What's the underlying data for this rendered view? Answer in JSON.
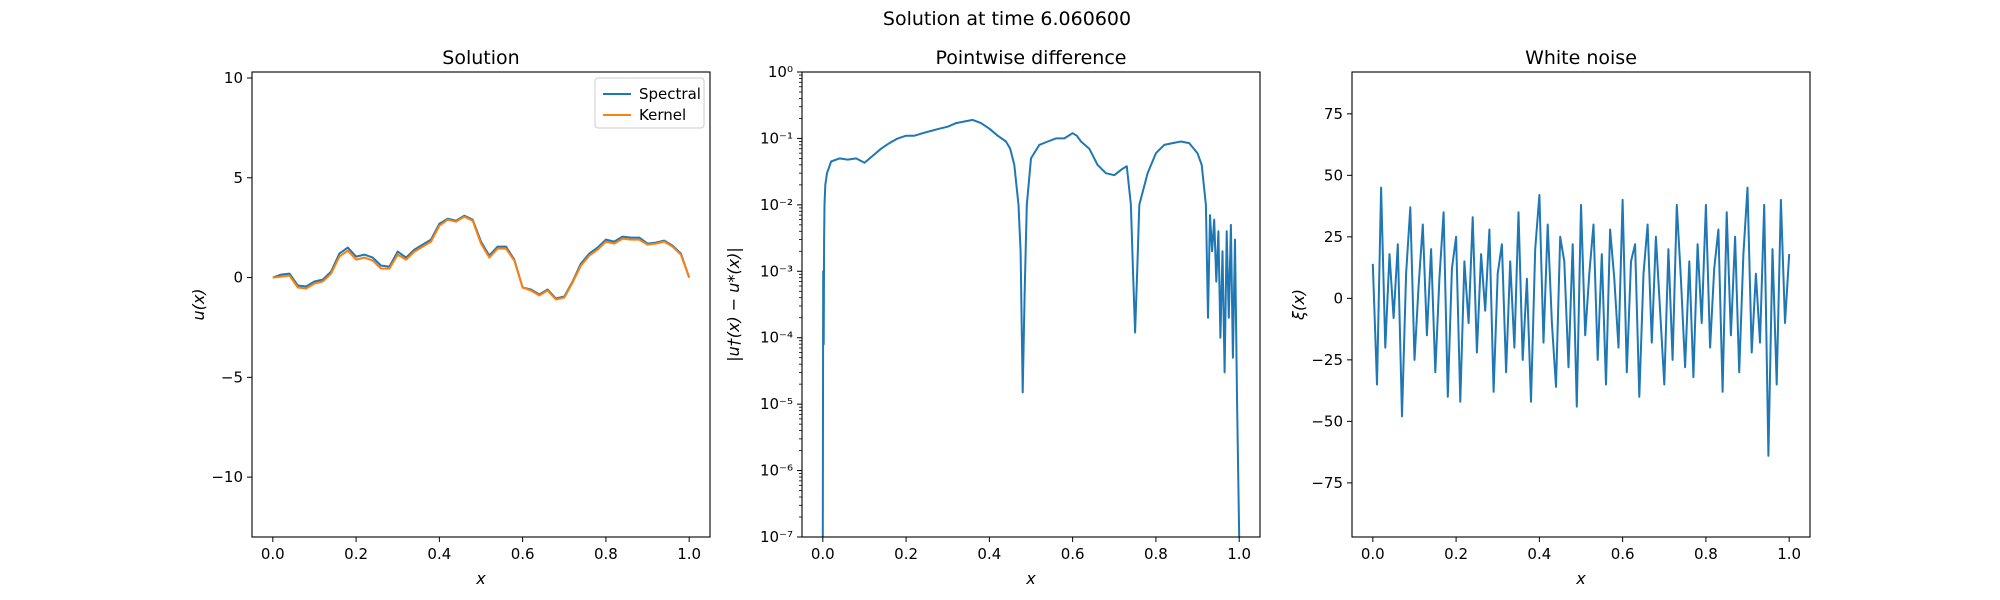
{
  "suptitle": "Solution at time 6.060600",
  "colors": {
    "spectral": "#1f77b4",
    "kernel": "#ff7f0e",
    "noise": "#1f77b4",
    "diff": "#1f77b4"
  },
  "chart_data": [
    {
      "type": "line",
      "title": "Solution",
      "xlabel": "x",
      "ylabel": "u(x)",
      "xlim": [
        -0.05,
        1.05
      ],
      "ylim": [
        -13.0,
        10.3
      ],
      "xticks": [
        "0.0",
        "0.2",
        "0.4",
        "0.6",
        "0.8",
        "1.0"
      ],
      "yticks": [
        "−10",
        "−5",
        "0",
        "5",
        "10"
      ],
      "legend": {
        "position": "top-right",
        "entries": [
          "Spectral",
          "Kernel"
        ]
      },
      "series": [
        {
          "name": "Spectral",
          "x": [
            0.0,
            0.02,
            0.04,
            0.06,
            0.08,
            0.1,
            0.12,
            0.14,
            0.16,
            0.18,
            0.2,
            0.22,
            0.24,
            0.26,
            0.28,
            0.3,
            0.32,
            0.34,
            0.36,
            0.38,
            0.4,
            0.42,
            0.44,
            0.46,
            0.48,
            0.5,
            0.52,
            0.54,
            0.56,
            0.58,
            0.6,
            0.62,
            0.64,
            0.66,
            0.68,
            0.7,
            0.72,
            0.74,
            0.76,
            0.78,
            0.8,
            0.82,
            0.84,
            0.86,
            0.88,
            0.9,
            0.92,
            0.94,
            0.96,
            0.98,
            1.0
          ],
          "y": [
            0.0,
            0.15,
            0.2,
            -0.4,
            -0.45,
            -0.2,
            -0.1,
            0.3,
            1.2,
            1.5,
            1.05,
            1.15,
            1.0,
            0.6,
            0.55,
            1.3,
            1.0,
            1.4,
            1.65,
            1.9,
            2.7,
            2.95,
            2.85,
            3.1,
            2.9,
            1.8,
            1.1,
            1.55,
            1.55,
            0.9,
            -0.5,
            -0.6,
            -0.85,
            -0.6,
            -1.05,
            -0.95,
            -0.2,
            0.7,
            1.2,
            1.5,
            1.9,
            1.8,
            2.05,
            2.0,
            2.0,
            1.7,
            1.75,
            1.85,
            1.6,
            1.2,
            0.0
          ]
        },
        {
          "name": "Kernel",
          "x": [
            0.0,
            0.02,
            0.04,
            0.06,
            0.08,
            0.1,
            0.12,
            0.14,
            0.16,
            0.18,
            0.2,
            0.22,
            0.24,
            0.26,
            0.28,
            0.3,
            0.32,
            0.34,
            0.36,
            0.38,
            0.4,
            0.42,
            0.44,
            0.46,
            0.48,
            0.5,
            0.52,
            0.54,
            0.56,
            0.58,
            0.6,
            0.62,
            0.64,
            0.66,
            0.68,
            0.7,
            0.72,
            0.74,
            0.76,
            0.78,
            0.8,
            0.82,
            0.84,
            0.86,
            0.88,
            0.9,
            0.92,
            0.94,
            0.96,
            0.98,
            1.0
          ],
          "y": [
            0.0,
            0.05,
            0.1,
            -0.5,
            -0.55,
            -0.3,
            -0.2,
            0.2,
            1.05,
            1.35,
            0.9,
            1.0,
            0.85,
            0.45,
            0.45,
            1.15,
            0.9,
            1.3,
            1.55,
            1.8,
            2.6,
            2.9,
            2.8,
            3.05,
            2.85,
            1.7,
            1.0,
            1.45,
            1.45,
            0.85,
            -0.5,
            -0.65,
            -0.9,
            -0.65,
            -1.1,
            -1.0,
            -0.25,
            0.6,
            1.1,
            1.4,
            1.8,
            1.7,
            1.95,
            1.9,
            1.9,
            1.65,
            1.7,
            1.8,
            1.55,
            1.15,
            0.0
          ]
        }
      ]
    },
    {
      "type": "line",
      "title": "Pointwise difference",
      "xlabel": "x",
      "ylabel": "|u†(x) − u*(x)|",
      "yscale": "log",
      "xlim": [
        -0.05,
        1.05
      ],
      "ylim": [
        1e-07,
        1
      ],
      "xticks": [
        "0.0",
        "0.2",
        "0.4",
        "0.6",
        "0.8",
        "1.0"
      ],
      "yticks": [
        "10⁻⁷",
        "10⁻⁶",
        "10⁻⁵",
        "10⁻⁴",
        "10⁻³",
        "10⁻²",
        "10⁻¹",
        "10⁰"
      ],
      "series": [
        {
          "x": [
            0.0,
            0.001,
            0.002,
            0.003,
            0.004,
            0.006,
            0.01,
            0.02,
            0.04,
            0.06,
            0.08,
            0.1,
            0.12,
            0.14,
            0.16,
            0.18,
            0.2,
            0.22,
            0.24,
            0.26,
            0.28,
            0.3,
            0.32,
            0.34,
            0.36,
            0.38,
            0.4,
            0.42,
            0.44,
            0.45,
            0.46,
            0.47,
            0.475,
            0.48,
            0.485,
            0.49,
            0.5,
            0.52,
            0.54,
            0.56,
            0.58,
            0.6,
            0.61,
            0.62,
            0.64,
            0.66,
            0.68,
            0.7,
            0.72,
            0.73,
            0.74,
            0.745,
            0.75,
            0.755,
            0.76,
            0.78,
            0.8,
            0.82,
            0.84,
            0.86,
            0.88,
            0.9,
            0.91,
            0.92,
            0.925,
            0.93,
            0.935,
            0.94,
            0.945,
            0.95,
            0.955,
            0.96,
            0.965,
            0.97,
            0.975,
            0.98,
            0.985,
            0.99,
            0.995,
            1.0
          ],
          "y": [
            1e-07,
            0.001,
            8e-05,
            0.003,
            0.01,
            0.02,
            0.03,
            0.045,
            0.05,
            0.048,
            0.05,
            0.043,
            0.055,
            0.07,
            0.085,
            0.1,
            0.11,
            0.11,
            0.12,
            0.13,
            0.14,
            0.15,
            0.17,
            0.18,
            0.19,
            0.17,
            0.14,
            0.11,
            0.09,
            0.07,
            0.04,
            0.01,
            0.002,
            1.5e-05,
            0.0006,
            0.01,
            0.05,
            0.08,
            0.09,
            0.1,
            0.1,
            0.12,
            0.11,
            0.09,
            0.07,
            0.04,
            0.03,
            0.028,
            0.035,
            0.038,
            0.01,
            0.001,
            0.00012,
            0.001,
            0.01,
            0.03,
            0.06,
            0.08,
            0.085,
            0.09,
            0.085,
            0.06,
            0.04,
            0.01,
            0.0002,
            0.007,
            0.002,
            0.006,
            0.0007,
            0.004,
            0.0001,
            0.002,
            3e-05,
            0.004,
            0.0002,
            0.005,
            5e-05,
            0.003,
            1e-05,
            1e-07
          ]
        }
      ]
    },
    {
      "type": "line",
      "title": "White noise",
      "xlabel": "x",
      "ylabel": "ξ(x)",
      "xlim": [
        -0.05,
        1.05
      ],
      "ylim": [
        -97,
        92
      ],
      "xticks": [
        "0.0",
        "0.2",
        "0.4",
        "0.6",
        "0.8",
        "1.0"
      ],
      "yticks": [
        "−75",
        "−50",
        "−25",
        "0",
        "25",
        "50",
        "75"
      ],
      "series": [
        {
          "x": [
            0.0,
            0.01,
            0.02,
            0.03,
            0.04,
            0.05,
            0.06,
            0.07,
            0.08,
            0.09,
            0.1,
            0.11,
            0.12,
            0.13,
            0.14,
            0.15,
            0.16,
            0.17,
            0.18,
            0.19,
            0.2,
            0.21,
            0.22,
            0.23,
            0.24,
            0.25,
            0.26,
            0.27,
            0.28,
            0.29,
            0.3,
            0.31,
            0.32,
            0.33,
            0.34,
            0.35,
            0.36,
            0.37,
            0.38,
            0.39,
            0.4,
            0.41,
            0.42,
            0.43,
            0.44,
            0.45,
            0.46,
            0.47,
            0.48,
            0.49,
            0.5,
            0.51,
            0.52,
            0.53,
            0.54,
            0.55,
            0.56,
            0.57,
            0.58,
            0.59,
            0.6,
            0.61,
            0.62,
            0.63,
            0.64,
            0.65,
            0.66,
            0.67,
            0.68,
            0.69,
            0.7,
            0.71,
            0.72,
            0.73,
            0.74,
            0.75,
            0.76,
            0.77,
            0.78,
            0.79,
            0.8,
            0.81,
            0.82,
            0.83,
            0.84,
            0.85,
            0.86,
            0.87,
            0.88,
            0.89,
            0.9,
            0.91,
            0.92,
            0.93,
            0.94,
            0.95,
            0.96,
            0.97,
            0.98,
            0.99,
            1.0
          ],
          "y": [
            14,
            -35,
            45,
            -20,
            18,
            -8,
            22,
            -48,
            10,
            37,
            -25,
            5,
            30,
            -15,
            20,
            -30,
            8,
            35,
            -40,
            12,
            25,
            -42,
            15,
            -10,
            33,
            -22,
            18,
            -5,
            28,
            -38,
            10,
            22,
            -30,
            15,
            -20,
            35,
            -25,
            8,
            -42,
            20,
            42,
            -18,
            30,
            -10,
            -36,
            25,
            15,
            -28,
            22,
            -44,
            38,
            -15,
            10,
            30,
            -25,
            18,
            -35,
            28,
            8,
            -20,
            40,
            -30,
            15,
            22,
            -40,
            10,
            30,
            -18,
            25,
            -5,
            -35,
            20,
            -25,
            38,
            8,
            -28,
            15,
            -32,
            22,
            -10,
            38,
            -20,
            12,
            28,
            -38,
            35,
            -15,
            25,
            -30,
            18,
            45,
            -22,
            10,
            -18,
            38,
            -64,
            20,
            -35,
            40,
            -10,
            18
          ]
        }
      ]
    }
  ]
}
